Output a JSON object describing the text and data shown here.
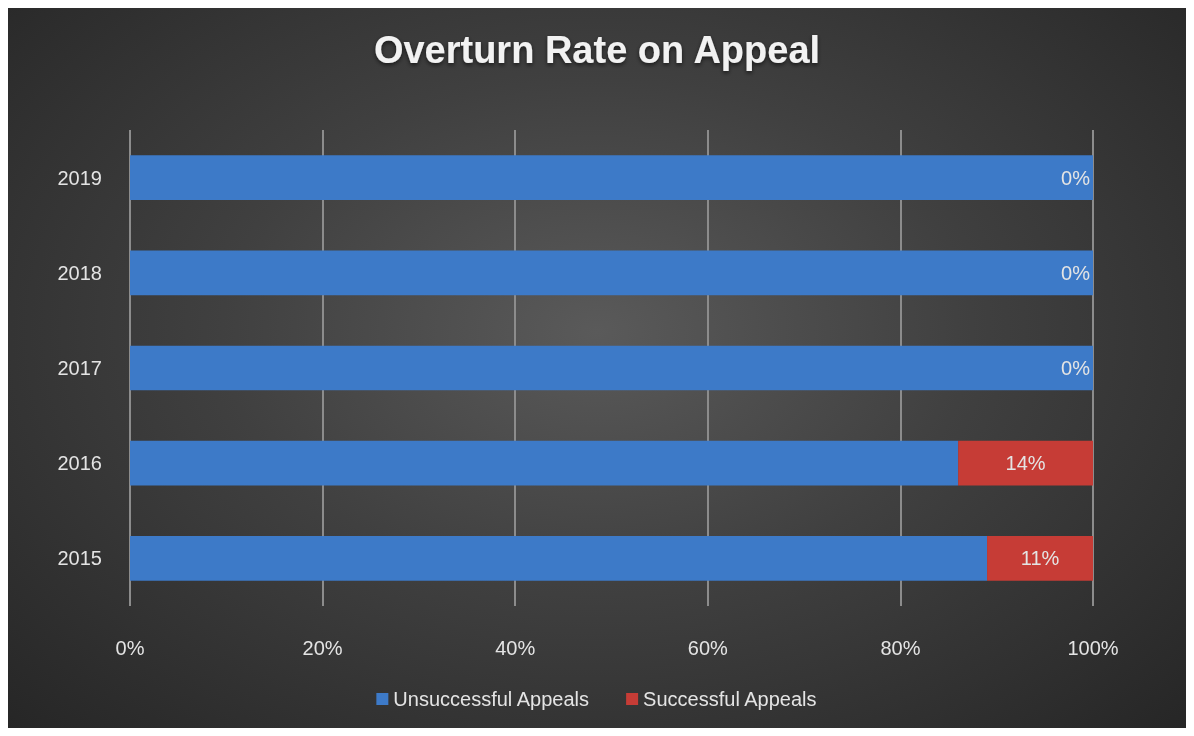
{
  "chart_data": {
    "type": "bar",
    "title": "Overturn Rate on Appeal",
    "orientation": "horizontal",
    "stacked": true,
    "categories": [
      "2019",
      "2018",
      "2017",
      "2016",
      "2015"
    ],
    "series": [
      {
        "name": "Unsuccessful Appeals",
        "color": "#3d7ac8",
        "values": [
          100,
          100,
          100,
          86,
          89
        ]
      },
      {
        "name": "Successful Appeals",
        "color": "#c63c36",
        "values": [
          0,
          0,
          0,
          14,
          11
        ],
        "value_labels": [
          "0%",
          "0%",
          "0%",
          "14%",
          "11%"
        ]
      }
    ],
    "xlim": [
      0,
      100
    ],
    "xticks": [
      {
        "value": 0,
        "label": "0%"
      },
      {
        "value": 20,
        "label": "20%"
      },
      {
        "value": 40,
        "label": "40%"
      },
      {
        "value": 60,
        "label": "60%"
      },
      {
        "value": 80,
        "label": "80%"
      },
      {
        "value": 100,
        "label": "100%"
      }
    ],
    "grid": "x",
    "legend": "bottom"
  }
}
